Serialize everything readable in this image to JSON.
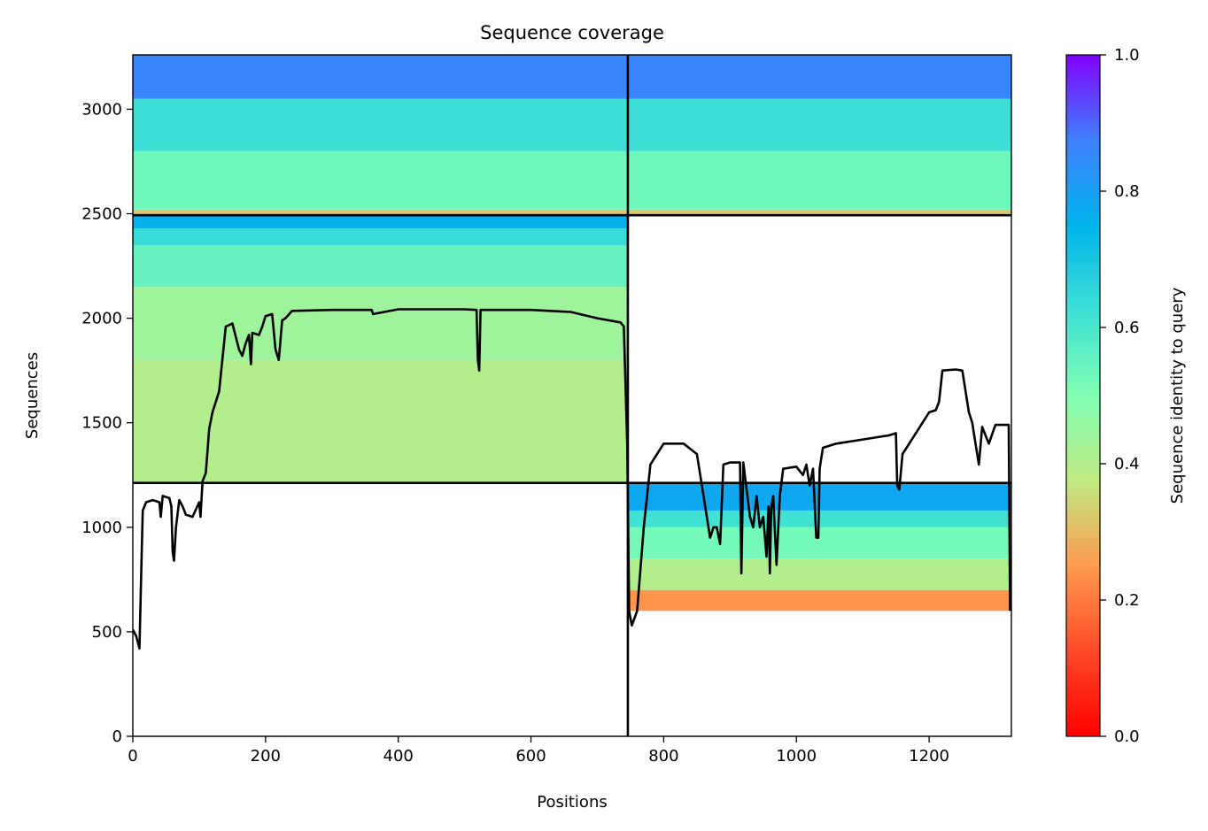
{
  "chart_data": {
    "type": "heatmap",
    "title": "Sequence coverage",
    "xlabel": "Positions",
    "ylabel": "Sequences",
    "xlim": [
      0,
      1324
    ],
    "ylim": [
      0,
      3260
    ],
    "x_ticks": [
      0,
      200,
      400,
      600,
      800,
      1000,
      1200
    ],
    "y_ticks": [
      0,
      500,
      1000,
      1500,
      2000,
      2500,
      3000
    ],
    "grid": false,
    "colorbar": {
      "label": "Sequence identity to query",
      "range": [
        0,
        1
      ],
      "ticks": [
        0.0,
        0.2,
        0.4,
        0.6,
        0.8,
        1.0
      ],
      "tick_labels": [
        "0.0",
        "0.2",
        "0.4",
        "0.6",
        "0.8",
        "1.0"
      ],
      "colormap": "rainbow_r"
    },
    "separators": {
      "x": [
        746
      ],
      "y": [
        1212,
        2493
      ]
    },
    "blocks": [
      {
        "x": [
          0,
          746
        ],
        "y": [
          2493,
          3260
        ],
        "identity_bands": [
          [
            2493,
            2520,
            0.32
          ],
          [
            2520,
            2800,
            0.53
          ],
          [
            2800,
            3050,
            0.63
          ],
          [
            3050,
            3260,
            0.86
          ]
        ]
      },
      {
        "x": [
          746,
          1324
        ],
        "y": [
          2493,
          3260
        ],
        "identity_bands": [
          [
            2493,
            2520,
            0.32
          ],
          [
            2520,
            2800,
            0.53
          ],
          [
            2800,
            3050,
            0.63
          ],
          [
            3050,
            3260,
            0.86
          ]
        ]
      },
      {
        "x": [
          0,
          746
        ],
        "y": [
          1212,
          2493
        ],
        "identity_bands": [
          [
            1212,
            1800,
            0.4
          ],
          [
            1800,
            2150,
            0.44
          ],
          [
            2150,
            2350,
            0.55
          ],
          [
            2350,
            2430,
            0.64
          ],
          [
            2430,
            2493,
            0.76
          ]
        ]
      },
      {
        "x": [
          746,
          1324
        ],
        "y": [
          0,
          1212
        ],
        "identity_bands": [
          [
            600,
            700,
            0.24
          ],
          [
            700,
            850,
            0.4
          ],
          [
            850,
            1000,
            0.52
          ],
          [
            1000,
            1080,
            0.62
          ],
          [
            1080,
            1212,
            0.78
          ]
        ]
      }
    ],
    "series": [
      {
        "x": [
          0,
          5,
          10,
          12,
          15,
          20,
          30,
          40,
          42,
          45,
          55,
          58,
          60,
          62,
          65,
          70,
          75,
          80,
          90,
          100,
          102,
          105,
          110,
          115,
          120,
          130,
          140,
          150,
          160,
          165,
          170,
          175,
          178,
          180,
          190,
          195,
          200,
          210,
          215,
          220,
          225,
          230,
          240,
          300,
          360,
          362,
          400,
          500,
          518,
          520,
          522,
          524,
          530,
          600,
          660,
          700,
          735,
          740,
          745,
          748,
          752,
          760,
          770,
          780,
          800,
          830,
          850,
          860,
          870,
          875,
          880,
          885,
          890,
          900,
          910,
          915,
          917,
          920,
          930,
          935,
          940,
          945,
          950,
          955,
          958,
          960,
          962,
          965,
          970,
          975,
          980,
          1000,
          1010,
          1015,
          1020,
          1025,
          1030,
          1033,
          1035,
          1040,
          1060,
          1100,
          1140,
          1150,
          1152,
          1155,
          1160,
          1170,
          1200,
          1210,
          1215,
          1220,
          1240,
          1250,
          1255,
          1260,
          1265,
          1270,
          1275,
          1280,
          1290,
          1300,
          1320,
          1322
        ],
        "y": [
          510,
          480,
          420,
          700,
          1080,
          1120,
          1130,
          1120,
          1050,
          1150,
          1140,
          1100,
          880,
          840,
          1000,
          1130,
          1100,
          1060,
          1050,
          1120,
          1050,
          1220,
          1260,
          1470,
          1550,
          1650,
          1960,
          1975,
          1850,
          1820,
          1880,
          1920,
          1780,
          1930,
          1920,
          1960,
          2010,
          2020,
          1850,
          1800,
          1990,
          2000,
          2035,
          2040,
          2040,
          2020,
          2043,
          2043,
          2040,
          1800,
          1750,
          2040,
          2040,
          2040,
          2030,
          2000,
          1980,
          1960,
          1400,
          600,
          530,
          600,
          1000,
          1300,
          1400,
          1400,
          1350,
          1150,
          950,
          1000,
          1000,
          920,
          1300,
          1310,
          1310,
          1310,
          780,
          1310,
          1050,
          1000,
          1150,
          1000,
          1050,
          860,
          1100,
          780,
          1090,
          1150,
          820,
          1150,
          1280,
          1290,
          1250,
          1300,
          1200,
          1280,
          950,
          950,
          1280,
          1380,
          1400,
          1420,
          1440,
          1450,
          1200,
          1180,
          1350,
          1400,
          1550,
          1560,
          1600,
          1750,
          1755,
          1750,
          1650,
          1550,
          1500,
          1400,
          1300,
          1480,
          1400,
          1490,
          1490,
          600
        ]
      }
    ]
  }
}
